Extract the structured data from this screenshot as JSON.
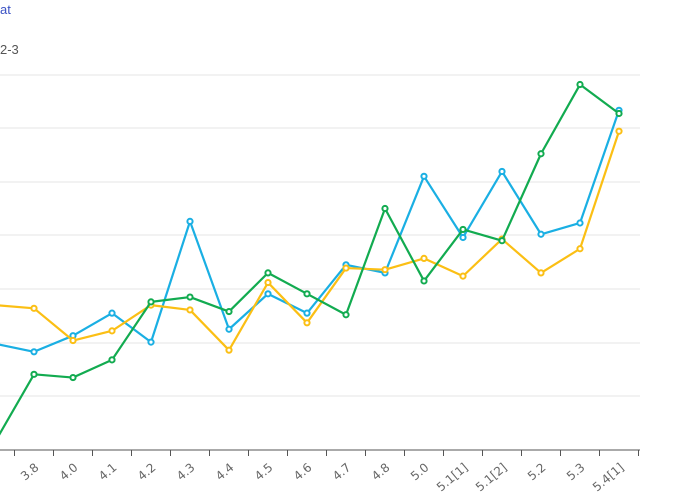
{
  "header": {
    "title_fragment": "at",
    "subtitle_fragment": "2-3"
  },
  "chart_data": {
    "type": "line",
    "title": "",
    "xlabel": "",
    "ylabel": "",
    "grid": true,
    "legend": "none",
    "categories": [
      "3.8",
      "4.0",
      "4.1",
      "4.2",
      "4.3",
      "4.4",
      "4.5",
      "4.6",
      "4.7",
      "4.8",
      "5.0",
      "5.1[1]",
      "5.1[2]",
      "5.2",
      "5.3",
      "5.4[1]"
    ],
    "series": [
      {
        "color": "#1aafe3",
        "start_value": 0.66,
        "values": [
          0.61,
          0.71,
          0.85,
          0.67,
          1.42,
          0.75,
          0.97,
          0.85,
          1.15,
          1.1,
          1.7,
          1.32,
          1.73,
          1.34,
          1.41,
          2.11
        ]
      },
      {
        "color": "#fbbf14",
        "start_value": 0.9,
        "values": [
          0.88,
          0.68,
          0.74,
          0.9,
          0.87,
          0.62,
          1.04,
          0.79,
          1.13,
          1.12,
          1.19,
          1.08,
          1.31,
          1.1,
          1.25,
          1.98
        ]
      },
      {
        "color": "#12ab50",
        "start_value": 0.05,
        "values": [
          0.47,
          0.45,
          0.56,
          0.92,
          0.95,
          0.86,
          1.1,
          0.97,
          0.84,
          1.5,
          1.05,
          1.37,
          1.3,
          1.84,
          2.27,
          2.09
        ]
      }
    ]
  }
}
